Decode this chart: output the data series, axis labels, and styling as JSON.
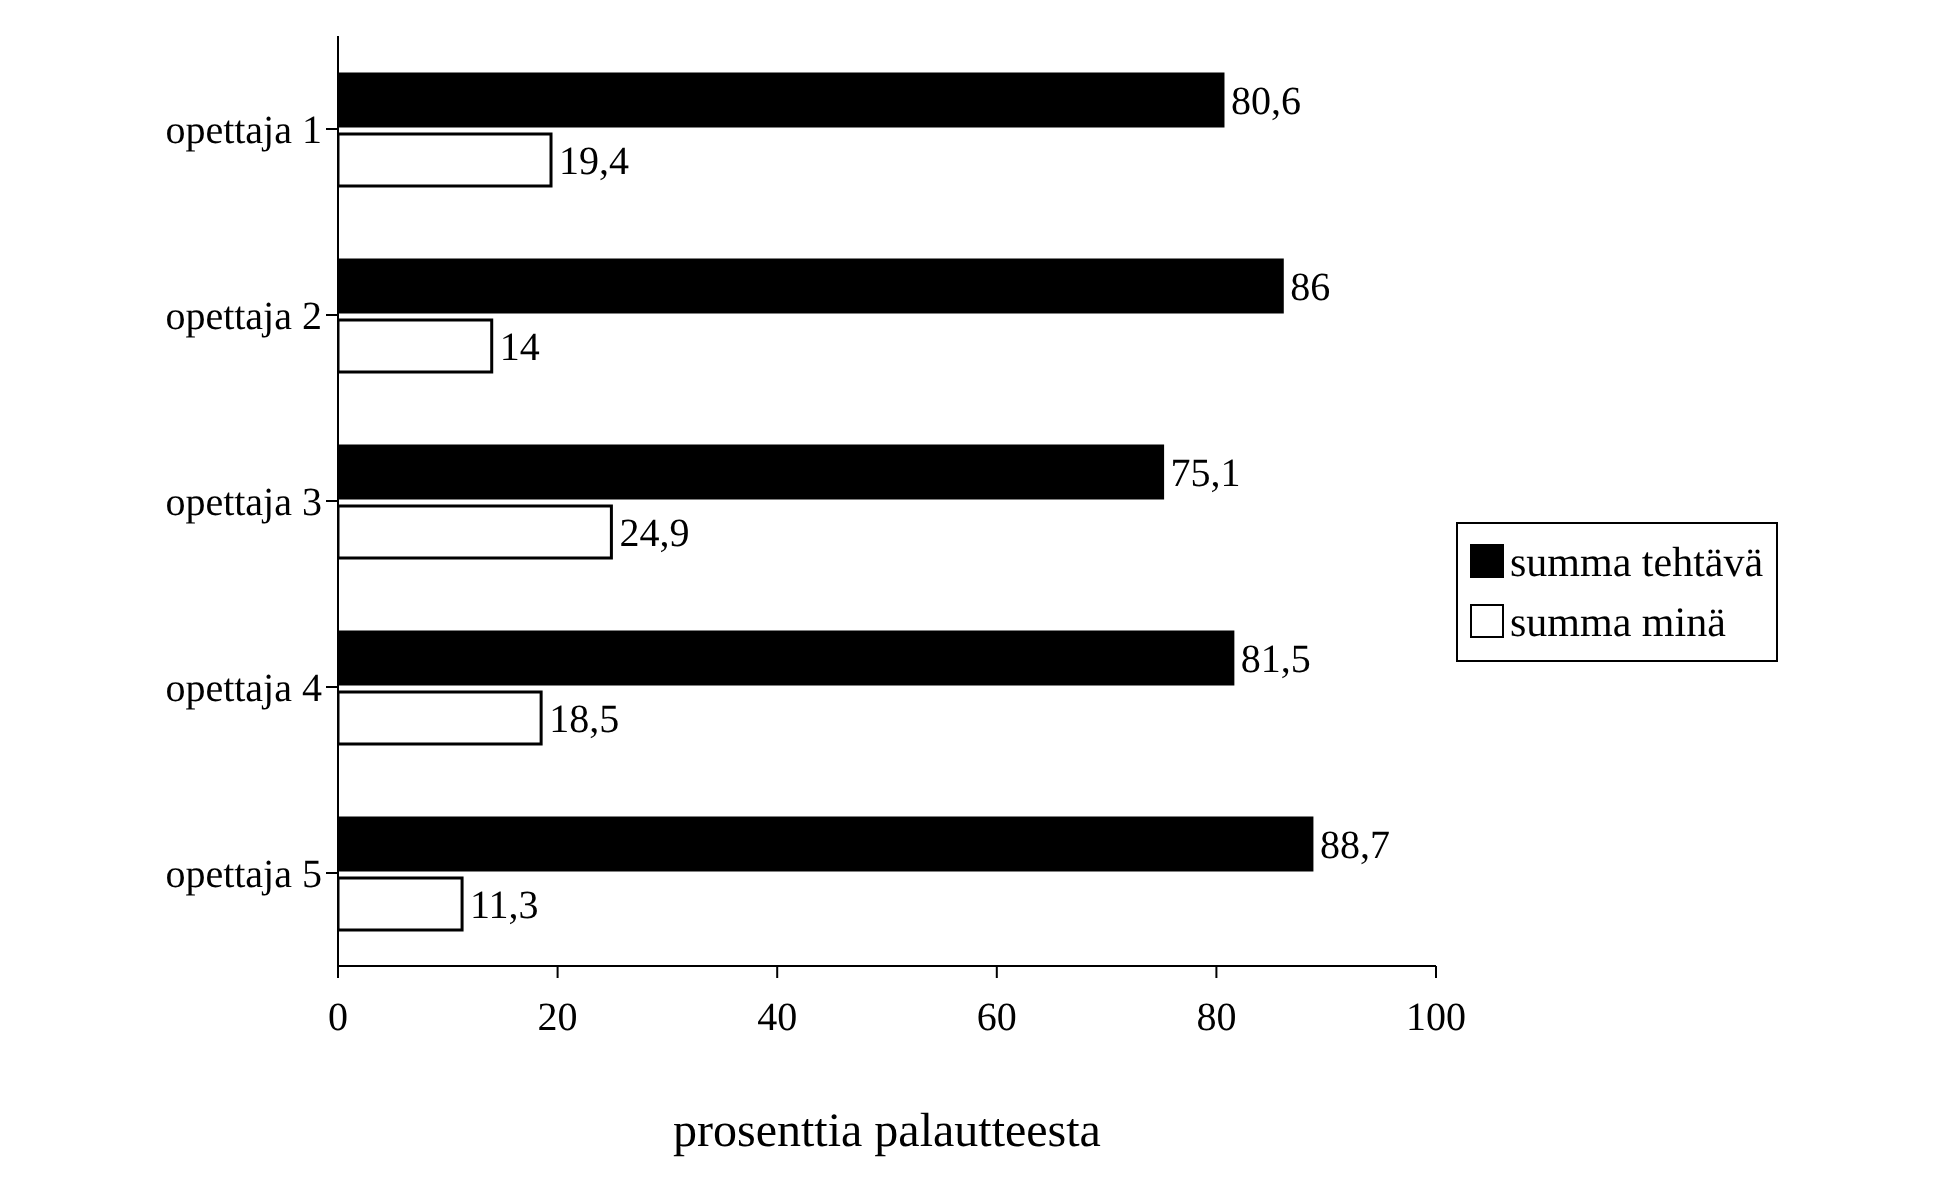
{
  "chart_data": {
    "type": "bar",
    "orientation": "horizontal",
    "xlabel": "prosenttia palautteesta",
    "categories": [
      "opettaja 1",
      "opettaja 2",
      "opettaja 3",
      "opettaja 4",
      "opettaja 5"
    ],
    "series": [
      {
        "name": "summa tehtävä",
        "color": "#000000",
        "values": [
          80.6,
          86,
          75.1,
          81.5,
          88.7
        ],
        "value_labels": [
          "80,6",
          "86",
          "75,1",
          "81,5",
          "88,7"
        ]
      },
      {
        "name": "summa minä",
        "color": "#ffffff",
        "values": [
          19.4,
          14,
          24.9,
          18.5,
          11.3
        ],
        "value_labels": [
          "19,4",
          "14",
          "24,9",
          "18,5",
          "11,3"
        ]
      }
    ],
    "xlim": [
      0,
      100
    ],
    "xticks": [
      0,
      20,
      40,
      60,
      80,
      100
    ],
    "legend": "right"
  }
}
